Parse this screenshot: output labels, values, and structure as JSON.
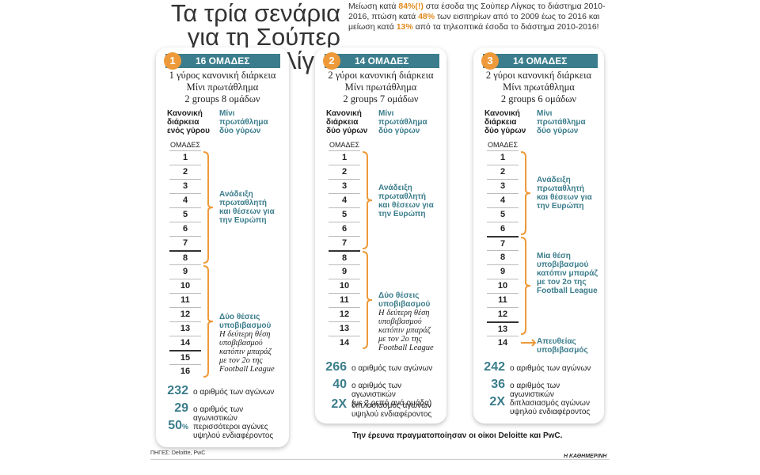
{
  "header": {
    "title_line1": "Τα τρία σενάρια",
    "title_line2": "για τη Σούπερ Λίγκα",
    "intro_p1": "Μείωση κατά ",
    "intro_h1": "84%(!)",
    "intro_p2": " στα έσοδα της Σούπερ Λίγκας το διάστημα 2010-2016, πτώση κατά ",
    "intro_h2": "48%",
    "intro_p3": " των εισιτηρίων από το 2009 έως το 2016 και μείωση κατά ",
    "intro_h3": "13%",
    "intro_p4": " από τα τηλεοπτικά έσοδα το διάστημα 2010-2016!"
  },
  "scenarios": [
    {
      "number": "1",
      "label": "16 ΟΜΑΔΕΣ",
      "desc": [
        "1 γύρος κανονική διάρκεια",
        "Μίνι πρωτάθλημα",
        "2 groups 8 ομάδων"
      ],
      "col_left": [
        "Κανονική",
        "διάρκεια",
        "ενός γύρου"
      ],
      "col_right": [
        "Μίνι",
        "πρωτάθλημα",
        "δύο γύρων"
      ],
      "teams_label": "ΟΜΑΔΕΣ",
      "rows": [
        "1",
        "2",
        "3",
        "4",
        "5",
        "6",
        "7",
        "8",
        "9",
        "10",
        "11",
        "12",
        "13",
        "14",
        "15",
        "16"
      ],
      "note1": [
        "Ανάδειξη",
        "πρωταθλητή",
        "και θέσεων για",
        "την Ευρώπη"
      ],
      "note2_title": [
        "Δύο θέσεις",
        "υποβιβασμού"
      ],
      "note2_italic": [
        "Η δεύτερη θέση",
        "υποβιβασμού",
        "κατόπιν μπαράζ",
        "με τον 2ο της",
        "Football League"
      ],
      "stats": [
        {
          "value": "232",
          "text": [
            "ο αριθμός των αγώνων"
          ]
        },
        {
          "value": "29",
          "text": [
            "ο αριθμός των αγωνιστικών"
          ]
        },
        {
          "value": "50",
          "unit": "%",
          "text": [
            "περισσότεροι αγώνες",
            "υψηλού ενδιαφέροντος"
          ]
        }
      ]
    },
    {
      "number": "2",
      "label": "14 ΟΜΑΔΕΣ",
      "desc": [
        "2 γύροι κανονική διάρκεια",
        "Μίνι πρωτάθλημα",
        "2 groups 7 ομάδων"
      ],
      "col_left": [
        "Κανονική",
        "διάρκεια",
        "δύο γύρων"
      ],
      "col_right": [
        "Μίνι",
        "πρωτάθλημα",
        "δύο γύρων"
      ],
      "teams_label": "ΟΜΑΔΕΣ",
      "rows": [
        "1",
        "2",
        "3",
        "4",
        "5",
        "6",
        "7",
        "8",
        "9",
        "10",
        "11",
        "12",
        "13",
        "14"
      ],
      "note1": [
        "Ανάδειξη",
        "πρωταθλητή",
        "και θέσεων για",
        "την Ευρώπη"
      ],
      "note2_title": [
        "Δύο θέσεις",
        "υποβιβασμού"
      ],
      "note2_italic": [
        "Η δεύτερη θέση",
        "υποβιβασμού",
        "κατόπιν μπαράζ",
        "με τον 2ο της",
        "Football League"
      ],
      "stats": [
        {
          "value": "266",
          "text": [
            "ο αριθμός των αγώνων"
          ]
        },
        {
          "value": "40",
          "text": [
            "ο αριθμός των αγωνιστικών",
            "(με 2 ρεπό ανά ομάδα)"
          ]
        },
        {
          "value": "2X",
          "text": [
            "διπλασιασμός αγώνων",
            "υψηλού ενδιαφέροντος"
          ]
        }
      ]
    },
    {
      "number": "3",
      "label": "14 ΟΜΑΔΕΣ",
      "desc": [
        "2 γύροι κανονική διάρκεια",
        "Μίνι πρωτάθλημα",
        "2 groups 6 ομάδων"
      ],
      "col_left": [
        "Κανονική",
        "διάρκεια",
        "δύο γύρων"
      ],
      "col_right": [
        "Μίνι",
        "πρωτάθλημα",
        "δύο γύρων"
      ],
      "teams_label": "ΟΜΑΔΕΣ",
      "rows": [
        "1",
        "2",
        "3",
        "4",
        "5",
        "6",
        "7",
        "8",
        "9",
        "10",
        "11",
        "12",
        "13",
        "14"
      ],
      "note1": [
        "Ανάδειξη",
        "πρωταθλητή",
        "και θέσεων για",
        "την Ευρώπη"
      ],
      "note2_title": [
        "Μία θέση",
        "υποβιβασμού",
        "κατόπιν μπαράζ",
        "με τον 2ο της",
        "Football League"
      ],
      "note3": [
        "Απευθείας",
        "υποβιβασμός"
      ],
      "stats": [
        {
          "value": "242",
          "text": [
            "ο αριθμός των αγώνων"
          ]
        },
        {
          "value": "36",
          "text": [
            "ο αριθμός των αγωνιστικών"
          ]
        },
        {
          "value": "2X",
          "text": [
            "διπλασιασμός αγώνων",
            "υψηλού ενδιαφέροντος"
          ]
        }
      ]
    }
  ],
  "footer": {
    "credit": "Την έρευνα πραγματοποίησαν οι οίκοι Deloitte και PwC.",
    "sources": "ΠΗΓΕΣ: Deloitte, PwC",
    "brand": "Η ΚΑΘΗΜΕΡΙΝΗ"
  }
}
